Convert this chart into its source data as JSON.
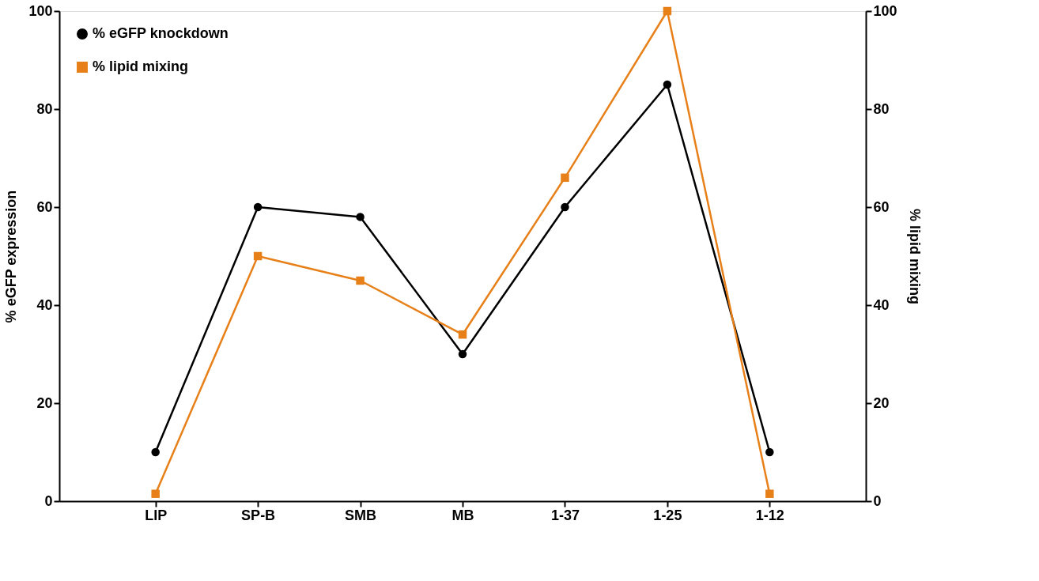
{
  "chart_data": {
    "type": "line",
    "categories": [
      "LIP",
      "SP-B",
      "SMB",
      "MB",
      "1-37",
      "1-25",
      "1-12"
    ],
    "ylabel": "% eGFP expression",
    "y2label": "% lipid mixing",
    "ylim": [
      0,
      100
    ],
    "yticks": [
      0,
      20,
      40,
      60,
      80,
      100
    ],
    "y2lim": [
      0,
      100
    ],
    "y2ticks": [
      0,
      20,
      40,
      60,
      80,
      100
    ],
    "series": [
      {
        "name": "% eGFP knockdown",
        "color": "#000000",
        "marker": "circle",
        "values": [
          10,
          60,
          58,
          30,
          60,
          85,
          10
        ]
      },
      {
        "name": "% lipid mixing",
        "color": "#e8801a",
        "marker": "square",
        "axis": "y2",
        "values": [
          1.5,
          50,
          45,
          34,
          66,
          100,
          1.5
        ]
      }
    ],
    "grid": false,
    "legend": "top left",
    "line_style": "solid"
  }
}
